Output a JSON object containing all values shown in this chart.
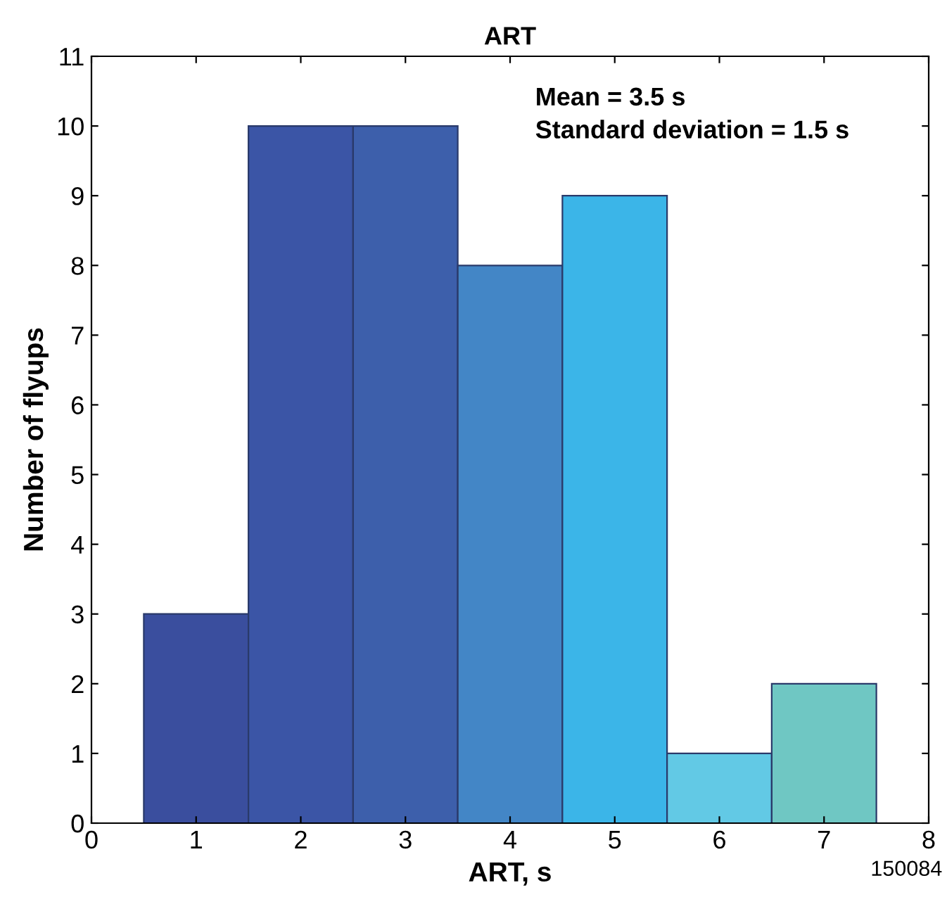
{
  "chart_data": {
    "type": "histogram",
    "title": "ART",
    "xlabel": "ART, s",
    "ylabel": "Number of flyups",
    "bins": [
      0.5,
      1.5,
      2.5,
      3.5,
      4.5,
      5.5,
      6.5,
      7.5
    ],
    "values": [
      3,
      10,
      10,
      8,
      9,
      1,
      2
    ],
    "colors": [
      "#3a4e9e",
      "#3b55a6",
      "#3d5fab",
      "#4386c6",
      "#3bb5e8",
      "#62c9e5",
      "#6fc7c3"
    ],
    "xlim": [
      0,
      8
    ],
    "xticks": [
      0,
      1,
      2,
      3,
      4,
      5,
      6,
      7,
      8
    ],
    "ylim": [
      0,
      11
    ],
    "yticks": [
      0,
      1,
      2,
      3,
      4,
      5,
      6,
      7,
      8,
      9,
      10,
      11
    ],
    "grid": false,
    "annotations": [
      "Mean = 3.5 s\nStandard deviation = 1.5 s",
      "150084"
    ]
  }
}
